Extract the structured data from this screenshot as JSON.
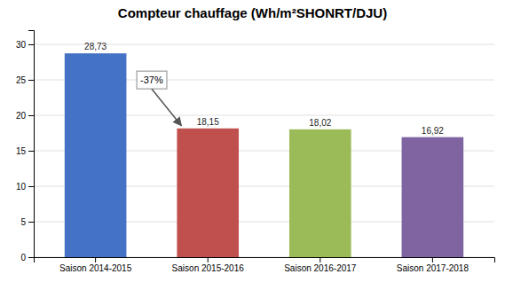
{
  "chart_data": {
    "type": "bar",
    "title": "Compteur chauffage (Wh/m²SHONRT/DJU)",
    "categories": [
      "Saison 2014-2015",
      "Saison 2015-2016",
      "Saison 2016-2017",
      "Saison 2017-2018"
    ],
    "values": [
      28.73,
      18.15,
      18.02,
      16.92
    ],
    "value_labels": [
      "28,73",
      "18,15",
      "18,02",
      "16,92"
    ],
    "data_labels": true,
    "colors": [
      "#4472C4",
      "#C0504D",
      "#9BBB59",
      "#8064A2"
    ],
    "ylim": [
      0,
      32
    ],
    "yticks": [
      0,
      5,
      10,
      15,
      20,
      25,
      30
    ],
    "grid": true,
    "annotation": "-37%"
  }
}
